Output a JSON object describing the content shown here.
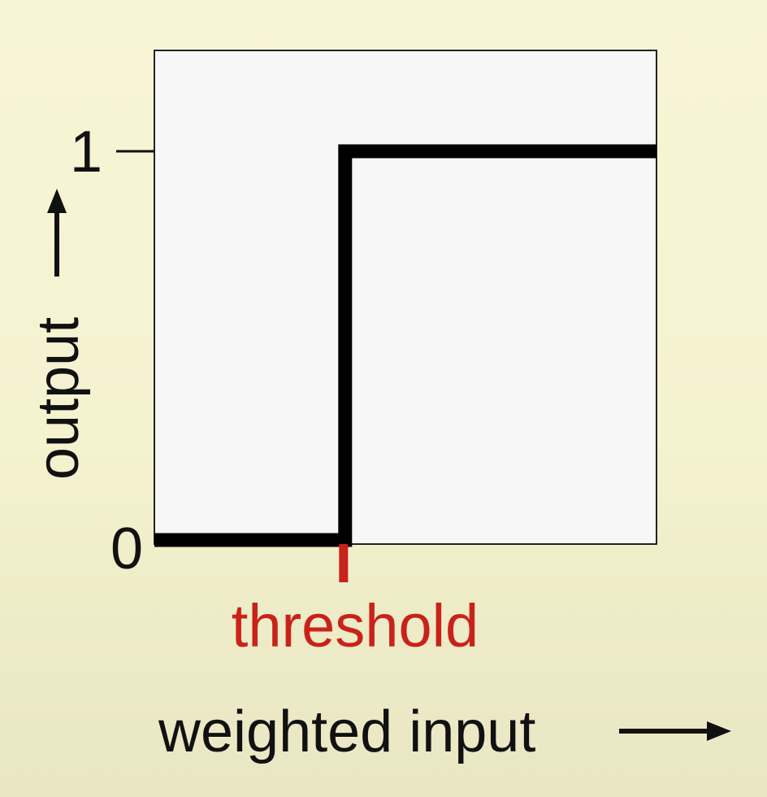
{
  "chart_data": {
    "type": "line",
    "title": "",
    "xlabel": "weighted input",
    "ylabel": "output",
    "xlim": [
      0,
      1
    ],
    "ylim": [
      0,
      1
    ],
    "yticks": [
      {
        "value": 0,
        "label": "0"
      },
      {
        "value": 1,
        "label": "1"
      }
    ],
    "threshold": {
      "value": 0.38,
      "label": "threshold"
    },
    "series": [
      {
        "x": [
          0,
          0.38,
          0.38,
          1
        ],
        "y": [
          0,
          0,
          1,
          1
        ]
      }
    ],
    "grid": false,
    "legend": "none",
    "colors": {
      "line": "#000000",
      "threshold": "#c9221a",
      "plot_background": "#f6f7f6",
      "page_background": "#f6f3d3"
    }
  }
}
